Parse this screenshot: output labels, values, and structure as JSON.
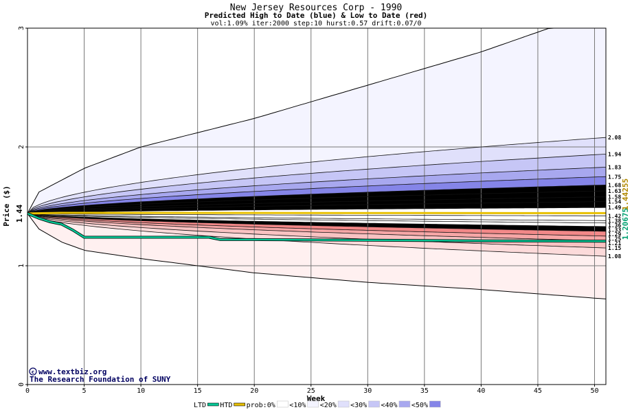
{
  "chart_data": {
    "type": "area",
    "title": "New Jersey Resources Corp - 1990",
    "subtitle": "Predicted High to Date (blue) &  Low to Date (red)",
    "params": "vol:1.09% iter:2000 step:10 hurst:0.57 drift:0.07/0",
    "xlabel": "Week",
    "ylabel": "Price ($)",
    "xlim": [
      0,
      51
    ],
    "ylim": [
      0,
      3
    ],
    "x_ticks": [
      0,
      5,
      10,
      15,
      20,
      25,
      30,
      35,
      40,
      45,
      50
    ],
    "y_ticks": [
      0,
      1,
      2,
      3
    ],
    "grid": true,
    "start_price": 1.44,
    "start_price_label": "1.44",
    "right_labels": [
      "2.08",
      "1.94",
      "1.83",
      "1.75",
      "1.68",
      "1.63",
      "1.58",
      "1.54",
      "1.49",
      "1.42",
      "1.38",
      "1.36",
      "1.33",
      "1.29",
      "1.25",
      "1.21",
      "1.15",
      "1.08"
    ],
    "side_values": [
      {
        "label": "1.20675",
        "color": "#00a070"
      },
      {
        "label": "1.44255",
        "color": "#b08800"
      }
    ],
    "upper_quantiles": [
      {
        "band": "<10%",
        "end": 2.08
      },
      {
        "band": "<20%",
        "end": 1.94
      },
      {
        "band": "<30%",
        "end": 1.83
      },
      {
        "band": "<40%",
        "end": 1.75
      },
      {
        "band": "<50%",
        "end": 1.68
      }
    ],
    "lower_quantiles": [
      {
        "band": "<10%",
        "end": 1.08
      },
      {
        "band": "<20%",
        "end": 1.15
      },
      {
        "band": "<30%",
        "end": 1.21
      },
      {
        "band": "<40%",
        "end": 1.25
      },
      {
        "band": "<50%",
        "end": 1.29
      }
    ],
    "max_envelope": {
      "x": [
        0,
        1,
        3,
        5,
        10,
        20,
        30,
        40,
        46,
        51
      ],
      "y": [
        1.44,
        1.62,
        1.72,
        1.82,
        2.0,
        2.24,
        2.52,
        2.8,
        3.0,
        3.0
      ]
    },
    "min_envelope": {
      "x": [
        0,
        1,
        3,
        5,
        10,
        20,
        30,
        40,
        51
      ],
      "y": [
        1.44,
        1.31,
        1.2,
        1.13,
        1.06,
        0.94,
        0.86,
        0.8,
        0.72
      ]
    },
    "htd_line": {
      "x": [
        0,
        3,
        5,
        51
      ],
      "y": [
        1.44,
        1.445,
        1.445,
        1.4425
      ]
    },
    "ltd_line": {
      "x": [
        0,
        1,
        2,
        3,
        4,
        5,
        10,
        16,
        17,
        20,
        30,
        40,
        51
      ],
      "y": [
        1.44,
        1.4,
        1.37,
        1.35,
        1.3,
        1.24,
        1.24,
        1.24,
        1.22,
        1.22,
        1.215,
        1.21,
        1.2067
      ]
    },
    "legend": [
      {
        "label": "LTD",
        "color": "#00c896"
      },
      {
        "label": "HTD",
        "color": "#e8c000"
      },
      {
        "label": "prob:0%",
        "color": "#ffffff"
      },
      {
        "label": "<10%",
        "color": "#f4f4ff"
      },
      {
        "label": "<20%",
        "color": "#e0e0fb"
      },
      {
        "label": "<30%",
        "color": "#c6c6f6"
      },
      {
        "label": "<40%",
        "color": "#a8a8ef"
      },
      {
        "label": "<50%",
        "color": "#8585e8"
      }
    ]
  },
  "colors": {
    "blue_bands": [
      "#f4f4ff",
      "#e0e0fb",
      "#c6c6f6",
      "#a8a8ef",
      "#8585e8"
    ],
    "red_bands": [
      "#fff0f0",
      "#fcdada",
      "#f9c2c2",
      "#f6a6a6",
      "#f28888"
    ],
    "ltd": "#00c896",
    "htd": "#e8c000",
    "grid": "#777777"
  },
  "credit": {
    "site": "www.textbiz.org",
    "org": "The Research Foundation of SUNY"
  }
}
